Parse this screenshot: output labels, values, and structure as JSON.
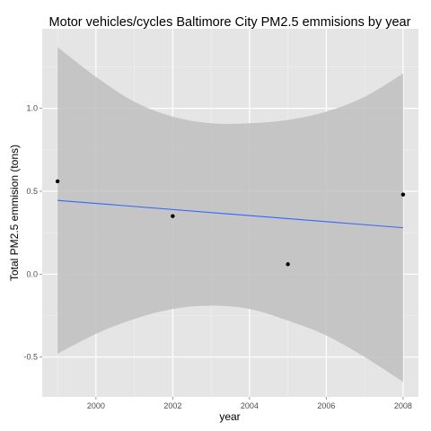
{
  "chart_data": {
    "type": "scatter",
    "title": "Motor vehicles/cycles Baltimore City PM2.5 emmisions by year",
    "xlabel": "year",
    "ylabel": "Total PM2.5 emmision (tons)",
    "xlim": [
      1998.6,
      2008.4
    ],
    "ylim": [
      -0.74,
      1.48
    ],
    "x_ticks": [
      2000,
      2002,
      2004,
      2006,
      2008
    ],
    "x_tick_labels": [
      "2000",
      "2002",
      "2004",
      "2006",
      "2008"
    ],
    "y_ticks": [
      -0.5,
      0.0,
      0.5,
      1.0
    ],
    "y_tick_labels": [
      "-0.5",
      "0.0",
      "0.5",
      "1.0"
    ],
    "grid": true,
    "points": [
      {
        "x": 1999,
        "y": 0.56
      },
      {
        "x": 2002,
        "y": 0.35
      },
      {
        "x": 2005,
        "y": 0.06
      },
      {
        "x": 2008,
        "y": 0.48
      }
    ],
    "fit_line": {
      "method": "linear",
      "x": [
        1999,
        2008
      ],
      "y": [
        0.445,
        0.28
      ]
    },
    "confidence_band": {
      "x": [
        1999,
        2000,
        2001,
        2002,
        2003,
        2004,
        2005,
        2006,
        2007,
        2008
      ],
      "upper": [
        1.37,
        1.19,
        1.04,
        0.95,
        0.91,
        0.91,
        0.93,
        0.98,
        1.07,
        1.21
      ],
      "lower": [
        -0.48,
        -0.36,
        -0.27,
        -0.21,
        -0.19,
        -0.21,
        -0.28,
        -0.37,
        -0.5,
        -0.65
      ]
    },
    "colors": {
      "panel": "#e5e5e5",
      "grid_major": "#ffffff",
      "grid_minor": "#f2f2f2",
      "band": "#bfbfbf",
      "line": "#3366ff",
      "point": "#000000"
    }
  }
}
